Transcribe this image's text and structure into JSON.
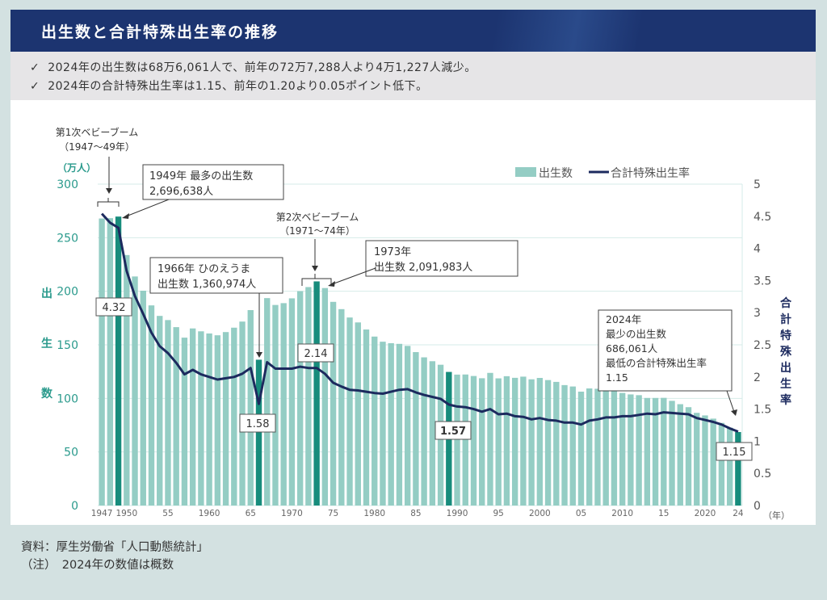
{
  "header": {
    "title": "出生数と合計特殊出生率の推移"
  },
  "summary": {
    "check_icon": "check-icon",
    "lines": [
      "2024年の出生数は68万6,061人で、前年の72万7,288人より4万1,227人減少。",
      "2024年の合計特殊出生率は1.15、前年の1.20より0.05ポイント低下。"
    ],
    "check_glyph": "✓"
  },
  "notes": {
    "source": "資料：厚生労働省「人口動態統計」",
    "note": "（注）　2024年の数値は概数"
  },
  "colors": {
    "bar": "#94cdc4",
    "bar_highlight": "#178c7c",
    "line": "#1c2a5e",
    "left_axis": "#2a9a8c",
    "right_axis": "#1c2a5e",
    "title_bg": "#1c3470"
  },
  "chart_data": {
    "type": "bar+line",
    "title": "出生数と合計特殊出生率の推移",
    "legend": [
      "出生数",
      "合計特殊出生率"
    ],
    "legend_position": "top-right",
    "left_axis": {
      "unit": "（万人）",
      "label": "出生数",
      "ylim": [
        0,
        300
      ],
      "ticks": [
        "0",
        "50",
        "100",
        "150",
        "200",
        "250",
        "300"
      ]
    },
    "right_axis": {
      "label": "合計特殊出生率",
      "ylim": [
        0,
        5
      ],
      "ticks": [
        "0",
        "0.5",
        "1",
        "1.5",
        "2",
        "2.5",
        "3",
        "3.5",
        "4",
        "4.5",
        "5"
      ]
    },
    "x_unit": "（年）",
    "x_tick_labels": [
      {
        "year": 1947,
        "label": "1947"
      },
      {
        "year": 1950,
        "label": "1950"
      },
      {
        "year": 1955,
        "label": "55"
      },
      {
        "year": 1960,
        "label": "1960"
      },
      {
        "year": 1965,
        "label": "65"
      },
      {
        "year": 1970,
        "label": "1970"
      },
      {
        "year": 1975,
        "label": "75"
      },
      {
        "year": 1980,
        "label": "1980"
      },
      {
        "year": 1985,
        "label": "85"
      },
      {
        "year": 1990,
        "label": "1990"
      },
      {
        "year": 1995,
        "label": "95"
      },
      {
        "year": 2000,
        "label": "2000"
      },
      {
        "year": 2005,
        "label": "05"
      },
      {
        "year": 2010,
        "label": "2010"
      },
      {
        "year": 2015,
        "label": "15"
      },
      {
        "year": 2020,
        "label": "2020"
      },
      {
        "year": 2024,
        "label": "24"
      }
    ],
    "grid": true,
    "start_year": 1947,
    "births_man": [
      267.9,
      268.2,
      269.7,
      233.8,
      213.8,
      200.5,
      186.8,
      177.0,
      173.1,
      166.5,
      156.7,
      165.3,
      162.6,
      160.6,
      158.9,
      161.9,
      166.0,
      171.7,
      182.4,
      136.1,
      193.6,
      187.2,
      188.9,
      193.4,
      200.1,
      203.9,
      209.2,
      203.0,
      190.1,
      183.3,
      175.5,
      170.9,
      164.3,
      157.7,
      152.9,
      151.5,
      150.9,
      149.0,
      143.2,
      138.3,
      134.7,
      131.4,
      124.7,
      122.2,
      122.3,
      120.9,
      118.8,
      123.8,
      118.7,
      120.7,
      119.2,
      120.3,
      117.8,
      119.1,
      117.1,
      115.4,
      112.4,
      111.1,
      106.3,
      109.3,
      109.0,
      109.1,
      107.1,
      105.1,
      103.7,
      103.0,
      100.4,
      100.4,
      100.5,
      97.7,
      94.6,
      91.8,
      86.5,
      84.1,
      81.1,
      77.1,
      72.7,
      68.6
    ],
    "tfr": [
      4.54,
      4.4,
      4.32,
      3.65,
      3.26,
      2.98,
      2.69,
      2.48,
      2.37,
      2.22,
      2.04,
      2.11,
      2.04,
      2.0,
      1.96,
      1.98,
      2.0,
      2.05,
      2.14,
      1.58,
      2.23,
      2.13,
      2.13,
      2.13,
      2.16,
      2.14,
      2.14,
      2.05,
      1.91,
      1.85,
      1.8,
      1.79,
      1.77,
      1.75,
      1.74,
      1.77,
      1.8,
      1.81,
      1.76,
      1.72,
      1.69,
      1.66,
      1.57,
      1.54,
      1.53,
      1.5,
      1.46,
      1.5,
      1.42,
      1.43,
      1.39,
      1.38,
      1.34,
      1.36,
      1.33,
      1.32,
      1.29,
      1.29,
      1.26,
      1.32,
      1.34,
      1.37,
      1.37,
      1.39,
      1.39,
      1.41,
      1.43,
      1.42,
      1.45,
      1.44,
      1.43,
      1.42,
      1.36,
      1.33,
      1.3,
      1.26,
      1.2,
      1.15
    ],
    "highlight_years": [
      1949,
      1966,
      1973,
      1989,
      2024
    ],
    "rate_labels": [
      {
        "year": 1949,
        "text": "4.32"
      },
      {
        "year": 1966,
        "text": "1.58"
      },
      {
        "year": 1973,
        "text": "2.14"
      },
      {
        "year": 1989,
        "text": "1.57"
      },
      {
        "year": 2024,
        "text": "1.15"
      }
    ],
    "annotations": {
      "boom1_title": "第1次ベビーブーム",
      "boom1_range": "（1947〜49年）",
      "max_line1": "1949年 最多の出生数",
      "max_line2": "2,696,638人",
      "boom2_title": "第2次ベビーブーム",
      "boom2_range": "（1971〜74年）",
      "y1966_line1": "1966年 ひのえうま",
      "y1966_line2": "出生数 1,360,974人",
      "y1973_line1": "1973年",
      "y1973_line2": "出生数 2,091,983人",
      "y2024_lines": [
        "2024年",
        "最少の出生数",
        "686,061人",
        "最低の合計特殊出生率",
        "1.15"
      ]
    }
  }
}
